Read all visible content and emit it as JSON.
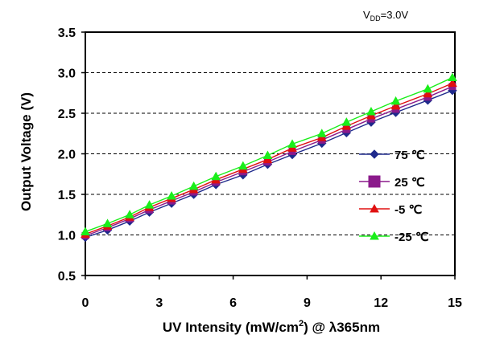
{
  "chart_data": {
    "type": "line",
    "annotation": {
      "prefix": "V",
      "subscript": "DD",
      "suffix": "=3.0V"
    },
    "xlabel": {
      "main": "UV Intensity (mW/cm",
      "sup": "2",
      "tail": ") @ λ365nm"
    },
    "ylabel": "Output Voltage (V)",
    "xlim": [
      0,
      15
    ],
    "ylim": [
      0.5,
      3.5
    ],
    "xticks": [
      "0",
      "3",
      "6",
      "9",
      "12",
      "15"
    ],
    "yticks": [
      "0.5",
      "1.0",
      "1.5",
      "2.0",
      "2.5",
      "3.0",
      "3.5"
    ],
    "grid": "horizontal-dashed",
    "legend_position": "right",
    "x": [
      0,
      0.9,
      1.8,
      2.6,
      3.5,
      4.4,
      5.3,
      6.4,
      7.4,
      8.4,
      9.6,
      10.6,
      11.6,
      12.6,
      13.9,
      14.9
    ],
    "series": [
      {
        "name": "75 ℃",
        "marker": "diamond",
        "color": "#1f2a8c",
        "values": [
          0.97,
          1.06,
          1.17,
          1.28,
          1.39,
          1.5,
          1.62,
          1.74,
          1.87,
          1.99,
          2.13,
          2.26,
          2.39,
          2.51,
          2.66,
          2.78
        ]
      },
      {
        "name": "25 ℃",
        "marker": "square",
        "color": "#8b1a8b",
        "values": [
          0.99,
          1.09,
          1.2,
          1.31,
          1.42,
          1.53,
          1.65,
          1.78,
          1.9,
          2.03,
          2.17,
          2.3,
          2.43,
          2.55,
          2.7,
          2.83
        ]
      },
      {
        "name": "-5 ℃",
        "marker": "triangle",
        "color": "#e01010",
        "values": [
          1.01,
          1.11,
          1.22,
          1.34,
          1.45,
          1.56,
          1.68,
          1.81,
          1.93,
          2.07,
          2.2,
          2.34,
          2.47,
          2.59,
          2.74,
          2.87
        ]
      },
      {
        "name": "-25 ℃",
        "marker": "triangle",
        "color": "#1aee1a",
        "values": [
          1.04,
          1.14,
          1.25,
          1.37,
          1.48,
          1.6,
          1.72,
          1.85,
          1.98,
          2.12,
          2.25,
          2.39,
          2.52,
          2.65,
          2.8,
          2.94
        ]
      }
    ]
  }
}
